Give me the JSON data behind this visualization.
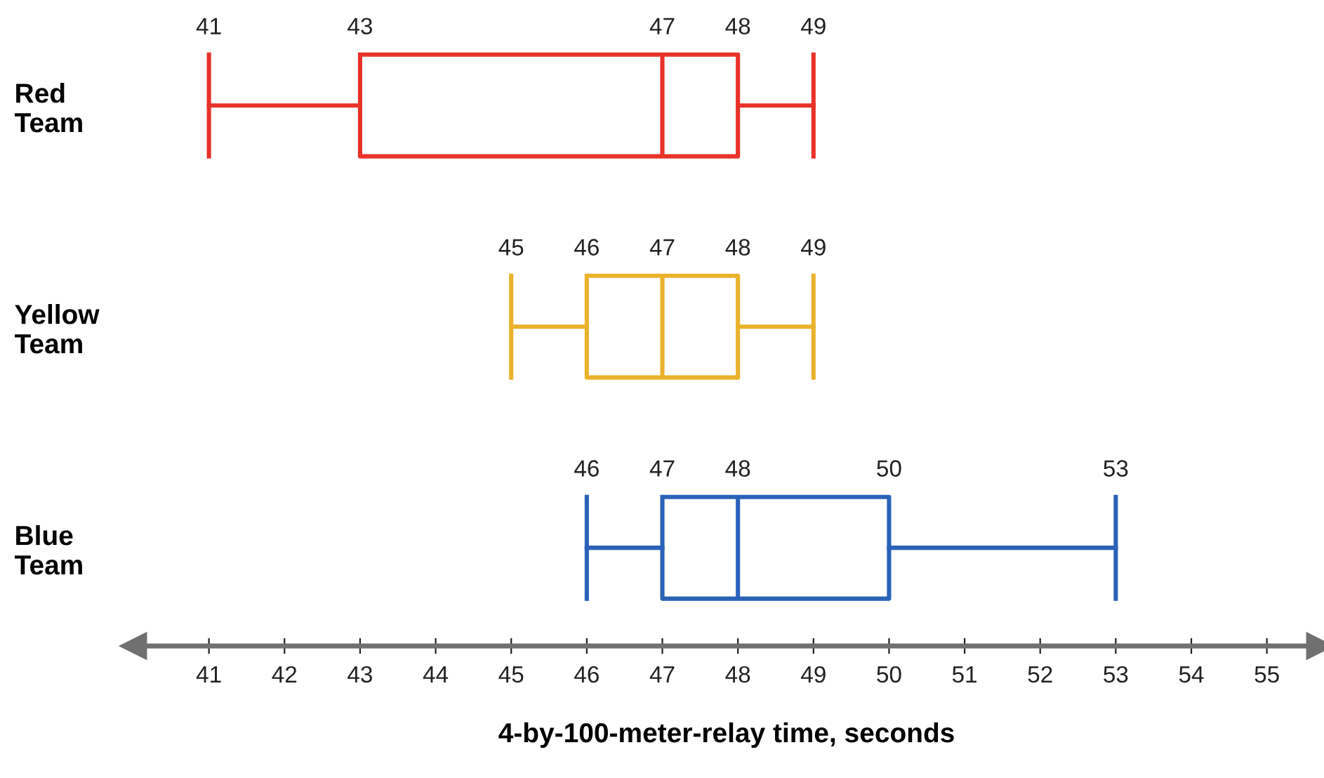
{
  "chart_data": {
    "type": "box",
    "orientation": "horizontal",
    "xlabel": "4-by-100-meter-relay time, seconds",
    "categories": [
      "Red\nTeam",
      "Yellow\nTeam",
      "Blue\nTeam"
    ],
    "colors": [
      "#e8322a",
      "#eab22c",
      "#2a62b8"
    ],
    "boxes": [
      {
        "low": 41,
        "q1": 43,
        "median": 47,
        "q3": 48,
        "high": 49
      },
      {
        "low": 45,
        "q1": 46,
        "median": 47,
        "q3": 48,
        "high": 49
      },
      {
        "low": 46,
        "q1": 47,
        "median": 48,
        "q3": 50,
        "high": 53
      }
    ],
    "xlim": [
      40,
      55.7
    ],
    "xticks": [
      41,
      42,
      43,
      44,
      45,
      46,
      47,
      48,
      49,
      50,
      51,
      52,
      53,
      54,
      55
    ],
    "annotations": [
      "41",
      "43",
      "47",
      "48",
      "49",
      "45",
      "46",
      "47",
      "48",
      "49",
      "46",
      "47",
      "48",
      "50",
      "53"
    ],
    "grid": false,
    "legend": false
  }
}
